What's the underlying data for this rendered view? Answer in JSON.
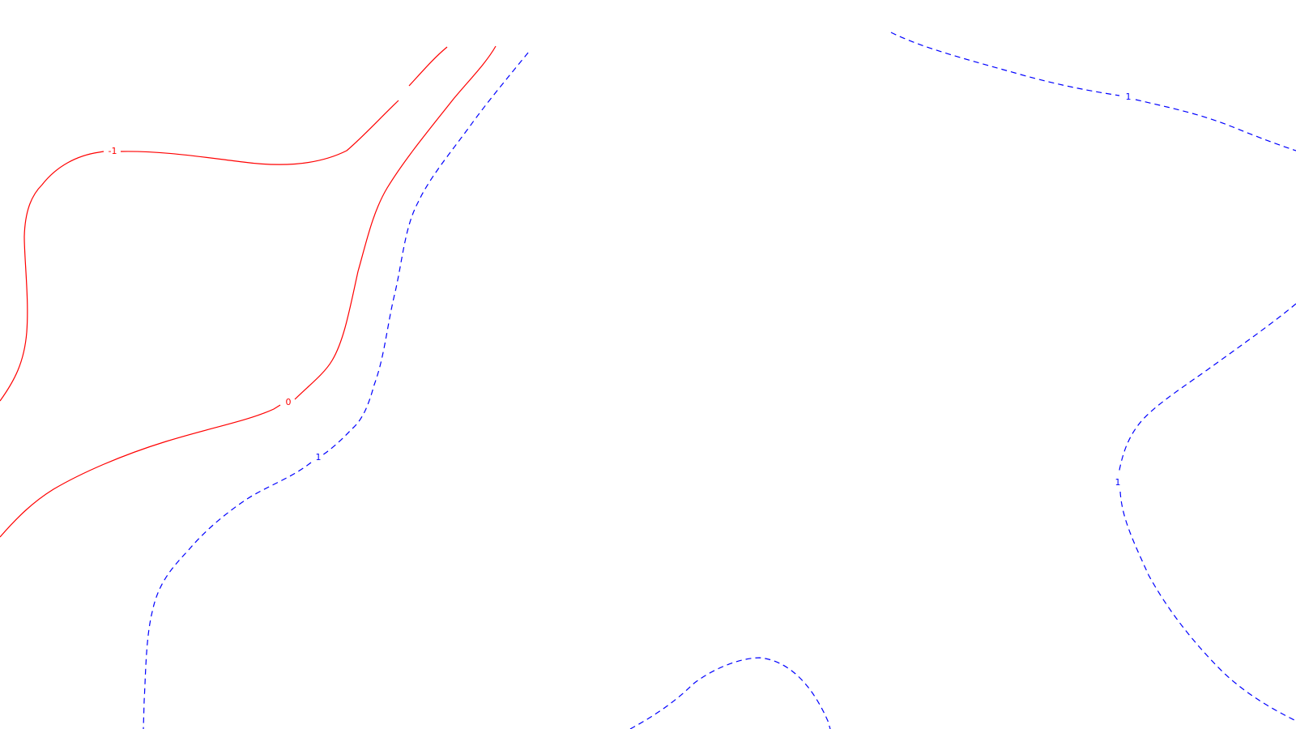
{
  "chart_data": {
    "type": "contour",
    "title": "",
    "xlabel": "",
    "ylabel": "",
    "levels": [
      {
        "value": -1,
        "label": "-1",
        "color": "#ff0000",
        "style": "solid"
      },
      {
        "value": 0,
        "label": "0",
        "color": "#ff0000",
        "style": "solid"
      },
      {
        "value": 1,
        "label": "1",
        "color": "#0000ff",
        "style": "dashed"
      }
    ],
    "contour_labels": [
      "-1",
      "0",
      "1",
      "1",
      "1"
    ]
  },
  "colors": {
    "negative_and_zero": "#ff0000",
    "positive": "#0000ff",
    "background": "#ffffff"
  }
}
